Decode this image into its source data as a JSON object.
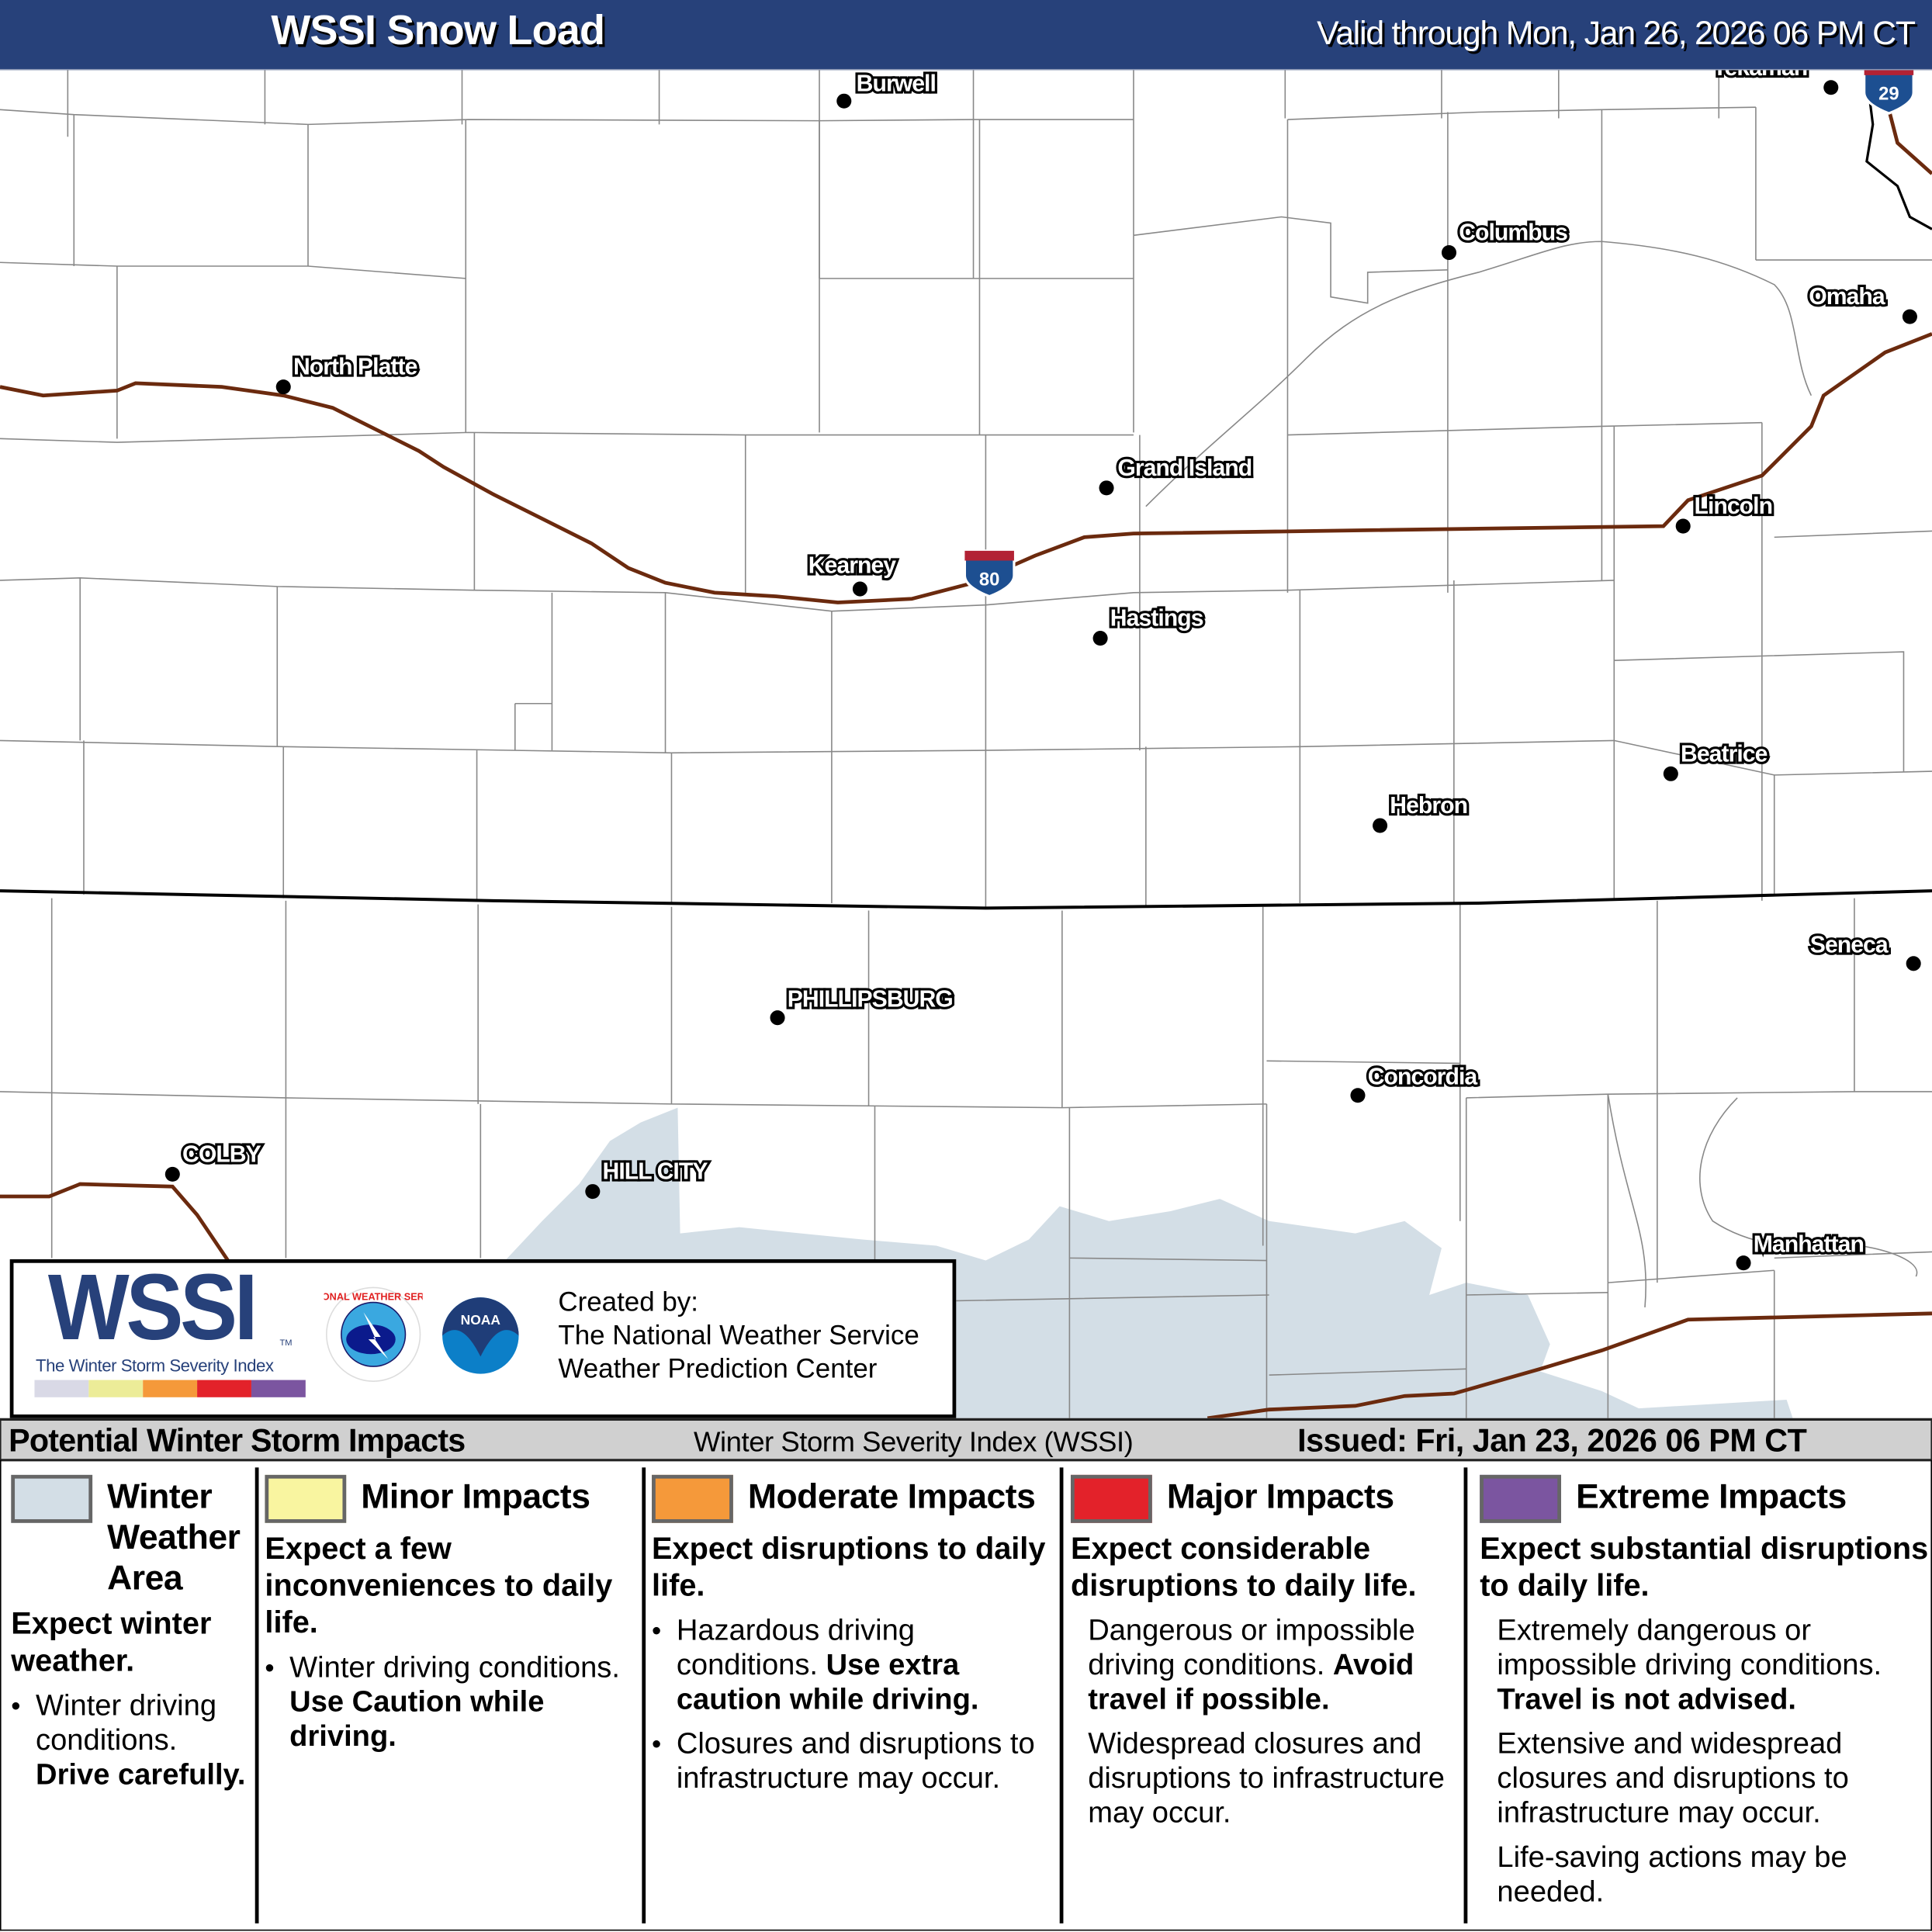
{
  "header": {
    "title": "WSSI Snow Load",
    "valid": "Valid through Mon, Jan 26, 2026 06 PM CT"
  },
  "map": {
    "colors": {
      "interstate": "#6b2a0e",
      "winter_weather_area": "#d3dee6",
      "county_line": "#888888",
      "state_line": "#000000"
    },
    "cities": [
      {
        "name": "Burwell"
      },
      {
        "name": "Tekamah"
      },
      {
        "name": "Columbus"
      },
      {
        "name": "Omaha"
      },
      {
        "name": "North Platte"
      },
      {
        "name": "Grand Island"
      },
      {
        "name": "Lincoln"
      },
      {
        "name": "Kearney"
      },
      {
        "name": "Hastings"
      },
      {
        "name": "Beatrice"
      },
      {
        "name": "Hebron"
      },
      {
        "name": "Seneca"
      },
      {
        "name": "PHILLIPSBURG"
      },
      {
        "name": "Concordia"
      },
      {
        "name": "COLBY"
      },
      {
        "name": "HILL CITY"
      },
      {
        "name": "Manhattan"
      }
    ],
    "shields": [
      {
        "route": "80",
        "icon": "interstate-shield-icon"
      },
      {
        "route": "29",
        "icon": "interstate-shield-icon"
      }
    ]
  },
  "logo": {
    "wssi": "WSSI",
    "tm": "TM",
    "subtitle": "The Winter Storm Severity Index",
    "bar_colors": [
      "#d9d9e6",
      "#ecec98",
      "#f5993a",
      "#e3222a",
      "#7b55a0"
    ],
    "nws_text": "NATIONAL WEATHER SERVICE",
    "noaa_text": "NOAA",
    "credit": [
      "Created by:",
      "The National Weather Service",
      "Weather Prediction Center"
    ]
  },
  "legend": {
    "header_left": "Potential Winter Storm Impacts",
    "header_center": "Winter Storm Severity Index (WSSI)",
    "header_right": "Issued: Fri, Jan 23, 2026 06 PM CT",
    "columns": [
      {
        "title": "Winter Weather Area",
        "color": "#d3dee6",
        "headline": "Expect winter weather.",
        "items": [
          {
            "text": "Winter driving conditions.",
            "bold": "Drive carefully."
          }
        ]
      },
      {
        "title": "Minor Impacts",
        "color": "#f9f5a0",
        "headline": "Expect a few inconveniences to daily life.",
        "items": [
          {
            "text": "Winter driving conditions.",
            "bold": "Use Caution while driving."
          }
        ]
      },
      {
        "title": "Moderate Impacts",
        "color": "#f5993a",
        "headline": "Expect disruptions to daily life.",
        "items": [
          {
            "text": "Hazardous driving conditions.",
            "bold": "Use extra caution while driving."
          },
          {
            "text": "Closures and disruptions to infrastructure may occur.",
            "bold": ""
          }
        ]
      },
      {
        "title": "Major Impacts",
        "color": "#e3222a",
        "headline": "Expect considerable disruptions to daily life.",
        "items": [
          {
            "text": "Dangerous or impossible driving conditions.",
            "bold": "Avoid travel if possible."
          },
          {
            "text": "Widespread closures and disruptions to infrastructure may occur.",
            "bold": ""
          }
        ]
      },
      {
        "title": "Extreme Impacts",
        "color": "#7b55a0",
        "headline": "Expect substantial disruptions to daily life.",
        "items": [
          {
            "text": "Extremely dangerous or impossible driving conditions.",
            "bold": "Travel is not advised."
          },
          {
            "text": "Extensive and widespread closures and disruptions to infrastructure may occur.",
            "bold": ""
          },
          {
            "text": "Life-saving actions may be needed.",
            "bold": ""
          }
        ]
      }
    ]
  }
}
